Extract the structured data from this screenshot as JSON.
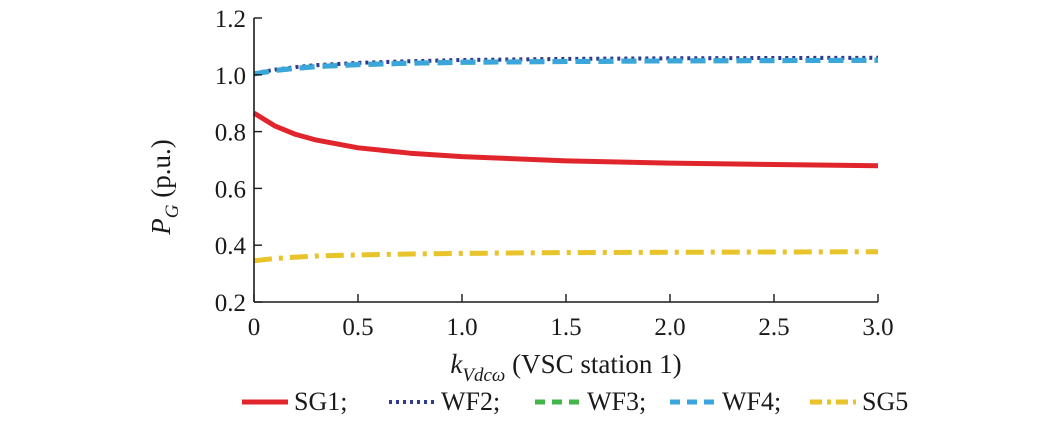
{
  "chart_data": {
    "type": "line",
    "xlabel": {
      "main": "k",
      "subscript": "Vdcω",
      "suffix": " (VSC station 1)"
    },
    "ylabel": {
      "main": "P",
      "subscript": "G",
      "suffix": " (p.u.)"
    },
    "xlim": [
      0,
      3.0
    ],
    "ylim": [
      0.2,
      1.2
    ],
    "xticks": [
      "0",
      "0.5",
      "1.0",
      "1.5",
      "2.0",
      "2.5",
      "3.0"
    ],
    "yticks": [
      "0.2",
      "0.4",
      "0.6",
      "0.8",
      "1.0",
      "1.2"
    ],
    "grid": false,
    "legend_position": "bottom",
    "series": [
      {
        "name": "SG1",
        "color": "#e0262c",
        "dash": "solid",
        "x": [
          0,
          0.1,
          0.2,
          0.3,
          0.5,
          0.75,
          1.0,
          1.5,
          2.0,
          2.5,
          3.0
        ],
        "y": [
          0.865,
          0.82,
          0.79,
          0.77,
          0.743,
          0.724,
          0.712,
          0.697,
          0.689,
          0.684,
          0.68
        ]
      },
      {
        "name": "WF2",
        "color": "#2e3a8c",
        "dash": "dotted",
        "x": [
          0,
          0.1,
          0.2,
          0.3,
          0.5,
          0.75,
          1.0,
          1.5,
          2.0,
          2.5,
          3.0
        ],
        "y": [
          1.005,
          1.018,
          1.027,
          1.034,
          1.042,
          1.048,
          1.052,
          1.056,
          1.058,
          1.059,
          1.06
        ]
      },
      {
        "name": "WF3",
        "color": "#44b649",
        "dash": "dashed",
        "x": [
          0,
          0.1,
          0.2,
          0.3,
          0.5,
          0.75,
          1.0,
          1.5,
          2.0,
          2.5,
          3.0
        ],
        "y": [
          1.003,
          1.015,
          1.023,
          1.029,
          1.036,
          1.041,
          1.044,
          1.047,
          1.049,
          1.05,
          1.051
        ]
      },
      {
        "name": "WF4",
        "color": "#3aa6dc",
        "dash": "dashed",
        "x": [
          0,
          0.1,
          0.2,
          0.3,
          0.5,
          0.75,
          1.0,
          1.5,
          2.0,
          2.5,
          3.0
        ],
        "y": [
          1.003,
          1.015,
          1.023,
          1.029,
          1.036,
          1.041,
          1.044,
          1.047,
          1.049,
          1.05,
          1.051
        ]
      },
      {
        "name": "SG5",
        "color": "#e8c32a",
        "dash": "dashdot",
        "x": [
          0,
          0.1,
          0.2,
          0.3,
          0.5,
          0.75,
          1.0,
          1.5,
          2.0,
          2.5,
          3.0
        ],
        "y": [
          0.345,
          0.353,
          0.358,
          0.362,
          0.366,
          0.369,
          0.371,
          0.374,
          0.375,
          0.376,
          0.377
        ]
      }
    ],
    "legend_separator": ";"
  }
}
